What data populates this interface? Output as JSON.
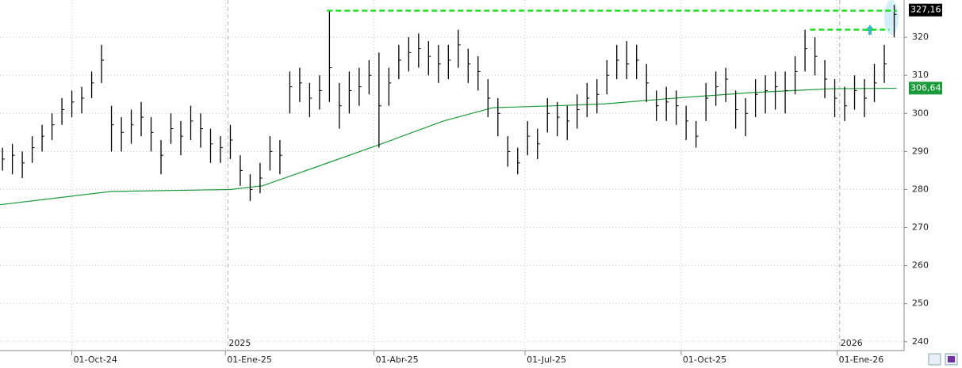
{
  "chart_data": {
    "type": "ohlc",
    "x": [
      -28,
      -24,
      -20,
      -16,
      -12,
      -8,
      -4,
      0,
      4,
      8,
      12,
      16,
      20,
      24,
      28,
      32,
      36,
      40,
      44,
      48,
      52,
      56,
      60,
      64,
      68,
      72,
      76,
      80,
      84,
      88,
      92,
      96,
      100,
      104,
      108,
      112,
      116,
      120,
      124,
      128,
      132,
      136,
      140,
      144,
      148,
      152,
      156,
      160,
      164,
      168,
      172,
      176,
      180,
      184,
      188,
      192,
      196,
      200,
      204,
      208,
      212,
      216,
      220,
      224,
      228,
      232,
      236,
      240,
      244,
      248,
      252,
      256,
      260,
      264,
      268,
      272,
      276,
      280,
      284,
      288,
      292,
      296,
      300,
      304,
      308,
      312,
      316,
      320,
      324,
      328,
      332
    ],
    "high": [
      291,
      292,
      290,
      294,
      297,
      300,
      304,
      306,
      307,
      311,
      318,
      302,
      299,
      301,
      303,
      299,
      293,
      300,
      298,
      302,
      300,
      296,
      294,
      297,
      289,
      284,
      287,
      294,
      293,
      311,
      312,
      308,
      310,
      327,
      308,
      311,
      312,
      314,
      316,
      312,
      318,
      320,
      321,
      319,
      318,
      318,
      322,
      317,
      315,
      309,
      304,
      294,
      291,
      298,
      296,
      304,
      303,
      302,
      305,
      308,
      309,
      314,
      318,
      319,
      318,
      313,
      306,
      307,
      306,
      302,
      298,
      308,
      311,
      312,
      306,
      304,
      309,
      310,
      311,
      311,
      315,
      322,
      320,
      314,
      309,
      307,
      310,
      309,
      313,
      318,
      328.5
    ],
    "low": [
      285,
      284,
      283,
      287,
      290,
      293,
      297,
      299,
      300,
      304,
      308,
      290,
      290,
      292,
      294,
      290,
      284,
      292,
      289,
      293,
      291,
      287,
      287,
      288,
      281,
      277,
      279,
      285,
      284,
      300,
      303,
      299,
      301,
      303,
      296,
      300,
      302,
      305,
      291,
      302,
      309,
      311,
      312,
      310,
      308,
      309,
      312,
      308,
      306,
      299,
      294,
      286,
      284,
      289,
      288,
      295,
      294,
      293,
      296,
      299,
      300,
      305,
      309,
      309,
      309,
      303,
      298,
      298,
      297,
      293,
      291,
      298,
      302,
      303,
      296,
      294,
      299,
      300,
      301,
      300,
      305,
      311,
      310,
      304,
      299,
      298,
      301,
      299,
      303,
      308,
      320
    ],
    "close": [
      288,
      289,
      287,
      291,
      294,
      297,
      301,
      303,
      304,
      308,
      314,
      297,
      295,
      297,
      299,
      295,
      289,
      296,
      294,
      298,
      296,
      292,
      291,
      293,
      285,
      280,
      283,
      290,
      289,
      307,
      308,
      304,
      306,
      312,
      302,
      306,
      307,
      310,
      302,
      308,
      314,
      316,
      317,
      315,
      313,
      314,
      318,
      313,
      311,
      304,
      300,
      290,
      287,
      294,
      292,
      300,
      299,
      298,
      301,
      304,
      305,
      310,
      314,
      313,
      314,
      308,
      302,
      303,
      302,
      298,
      294,
      304,
      307,
      309,
      301,
      300,
      305,
      306,
      307,
      306,
      311,
      317,
      315,
      309,
      304,
      302,
      306,
      304,
      308,
      313,
      326
    ],
    "bar_color": "#000000",
    "moving_average": {
      "color": "#1a9a3a",
      "x": [
        -29,
        16,
        64,
        77,
        99,
        125,
        150,
        170,
        195,
        215,
        243,
        275,
        307,
        333
      ],
      "values": [
        276,
        279.5,
        280,
        281,
        286,
        292,
        298,
        301.5,
        302,
        302.5,
        304,
        305.5,
        306.5,
        306.6
      ]
    },
    "lines": [
      {
        "y": 327,
        "x": [
          103,
          333
        ],
        "color": "#22dd22"
      },
      {
        "y": 322,
        "x": [
          298,
          330
        ],
        "color": "#22dd22"
      }
    ],
    "price_labels": [
      {
        "value": 327.16,
        "label": "327,16",
        "color": "#000000"
      },
      {
        "value": 306.64,
        "label": "306,64",
        "color": "#1a9a3a"
      }
    ],
    "xlim": [
      -29,
      336
    ],
    "xticks": [
      {
        "value": 0,
        "label": "01-Oct-24"
      },
      {
        "value": 62,
        "label": "01-Ene-25"
      },
      {
        "value": 122,
        "label": "01-Abr-25"
      },
      {
        "value": 183,
        "label": "01-Jul-25"
      },
      {
        "value": 246,
        "label": "01-Oct-25"
      },
      {
        "value": 309,
        "label": "01-Ene-26"
      }
    ],
    "year_marks": [
      {
        "value": 63,
        "label": "2025"
      },
      {
        "value": 310,
        "label": "2026"
      }
    ],
    "ylim": [
      238.3,
      329.8
    ],
    "yticks": [
      240,
      250,
      260,
      270,
      280,
      290,
      300,
      310,
      320
    ],
    "grid": true
  }
}
